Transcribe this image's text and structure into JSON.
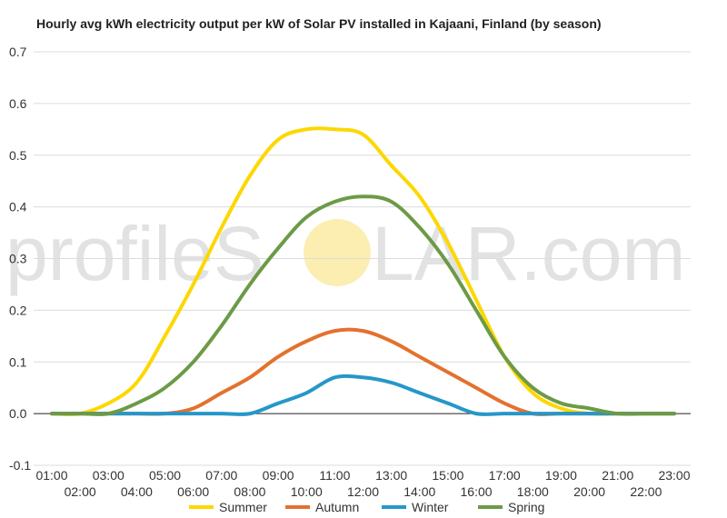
{
  "title": "Hourly avg kWh electricity output per kW of Solar PV installed in Kajaani, Finland (by season)",
  "watermark": {
    "left": "profileS",
    "right": "LAR.com",
    "sun_color": "#fbeeb0"
  },
  "chart_data": {
    "type": "line",
    "title": "Hourly avg kWh electricity output per kW of Solar PV installed in Kajaani, Finland (by season)",
    "xlabel": "",
    "ylabel": "",
    "x": [
      "01:00",
      "02:00",
      "03:00",
      "04:00",
      "05:00",
      "06:00",
      "07:00",
      "08:00",
      "09:00",
      "10:00",
      "11:00",
      "12:00",
      "13:00",
      "14:00",
      "15:00",
      "16:00",
      "17:00",
      "18:00",
      "19:00",
      "20:00",
      "21:00",
      "22:00",
      "23:00"
    ],
    "ylim": [
      -0.1,
      0.7
    ],
    "yticks": [
      "-0.1",
      "0.0",
      "0.1",
      "0.2",
      "0.3",
      "0.4",
      "0.5",
      "0.6",
      "0.7"
    ],
    "grid": true,
    "legend_position": "bottom",
    "series": [
      {
        "name": "Summer",
        "color": "#fdd700",
        "values": [
          0,
          0,
          0.02,
          0.06,
          0.15,
          0.25,
          0.36,
          0.46,
          0.53,
          0.55,
          0.55,
          0.54,
          0.48,
          0.42,
          0.33,
          0.22,
          0.11,
          0.04,
          0.01,
          0,
          0,
          0,
          0
        ]
      },
      {
        "name": "Autumn",
        "color": "#e3712e",
        "values": [
          0,
          0,
          0,
          0,
          0,
          0.01,
          0.04,
          0.07,
          0.11,
          0.14,
          0.16,
          0.16,
          0.14,
          0.11,
          0.08,
          0.05,
          0.02,
          0,
          0,
          0,
          0,
          0,
          0
        ]
      },
      {
        "name": "Winter",
        "color": "#2697c9",
        "values": [
          0,
          0,
          0,
          0,
          0,
          0,
          0,
          0,
          0.02,
          0.04,
          0.07,
          0.07,
          0.06,
          0.04,
          0.02,
          0,
          0,
          0,
          0,
          0,
          0,
          0,
          0
        ]
      },
      {
        "name": "Spring",
        "color": "#6c9a47",
        "values": [
          0,
          0,
          0,
          0.02,
          0.05,
          0.1,
          0.17,
          0.25,
          0.32,
          0.38,
          0.41,
          0.42,
          0.41,
          0.36,
          0.29,
          0.2,
          0.11,
          0.05,
          0.02,
          0.01,
          0,
          0,
          0
        ]
      }
    ]
  }
}
